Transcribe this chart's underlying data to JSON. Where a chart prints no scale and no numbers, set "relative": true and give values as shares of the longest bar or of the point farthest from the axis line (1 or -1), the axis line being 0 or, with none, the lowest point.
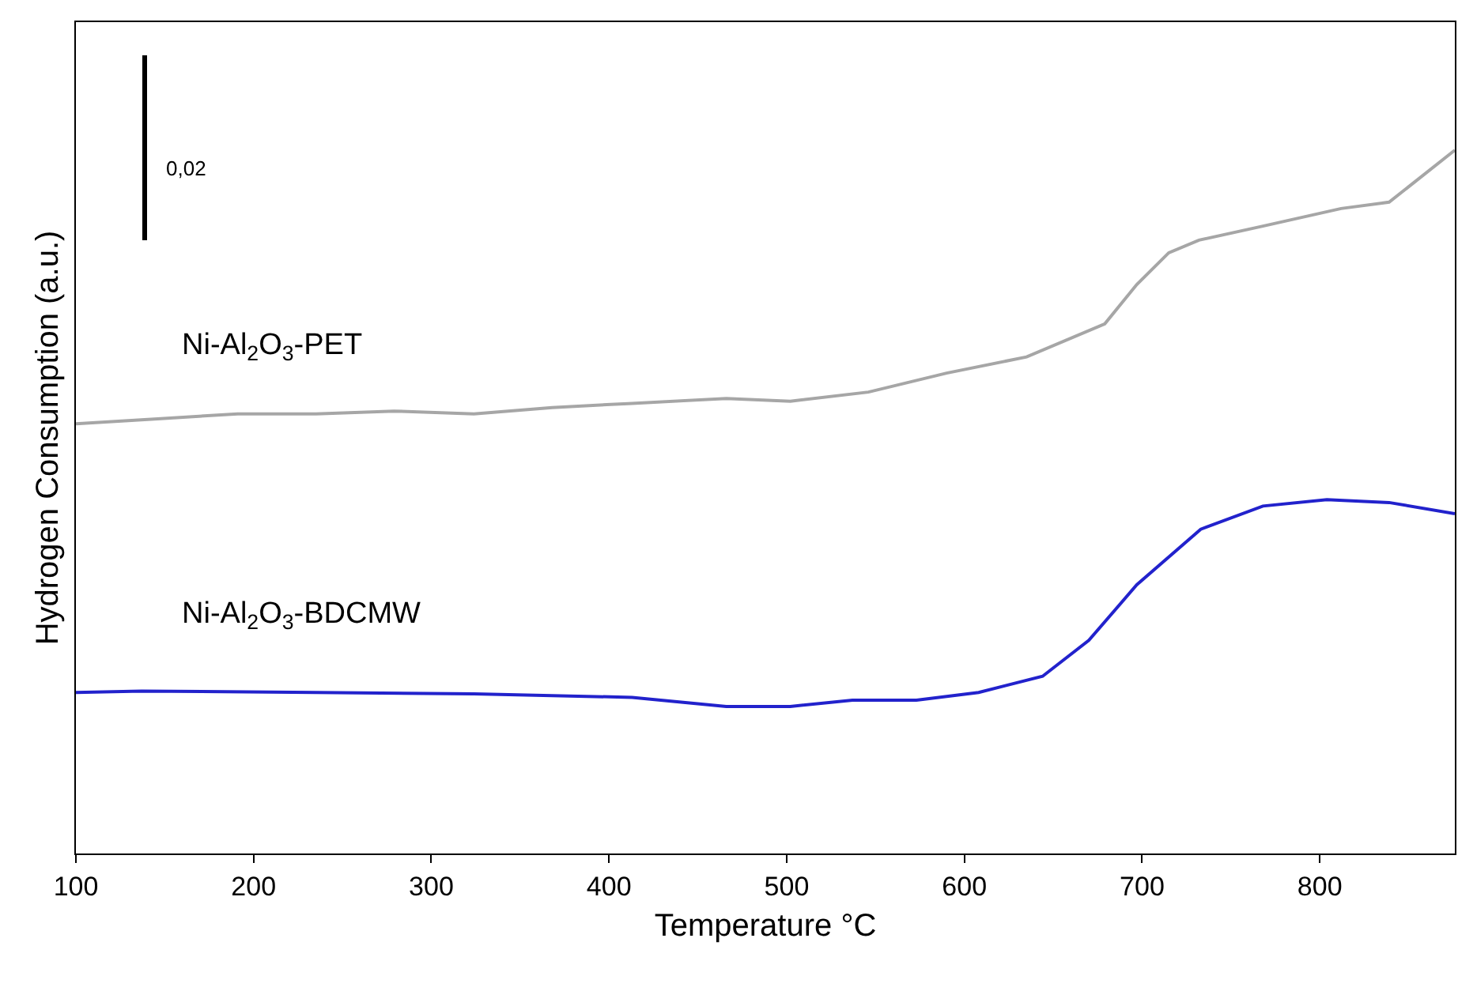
{
  "chart_data": {
    "type": "line",
    "relative": true,
    "xlabel": "Temperature °C",
    "ylabel": "Hydrogen Consumption (a.u.)",
    "xlim": [
      100,
      876
    ],
    "xticks": [
      100,
      200,
      300,
      400,
      500,
      600,
      700,
      800
    ],
    "grid": false,
    "legend": false,
    "marker": "none",
    "line_style": "solid",
    "annotations": [
      "0,02"
    ],
    "series": [
      {
        "name": "Ni-Al$_{2}$O$_{3}$-PET",
        "color": "#a6a6a6",
        "x": [
          100,
          146,
          191,
          235,
          279,
          324,
          368,
          413,
          466,
          502,
          546,
          590,
          635,
          679,
          697,
          715,
          732,
          768,
          812,
          839,
          876
        ],
        "values": [
          0.611,
          0.618,
          0.625,
          0.625,
          0.629,
          0.625,
          0.634,
          0.64,
          0.647,
          0.643,
          0.656,
          0.683,
          0.706,
          0.753,
          0.809,
          0.854,
          0.872,
          0.892,
          0.917,
          0.926,
          1
        ]
      },
      {
        "name": "Ni-Al$_{2}$O$_{3}$-BDCMW",
        "color": "#2222cc",
        "x": [
          100,
          137,
          235,
          324,
          413,
          466,
          502,
          537,
          573,
          608,
          644,
          670,
          697,
          733,
          768,
          804,
          839,
          876
        ],
        "values": [
          0.229,
          0.231,
          0.229,
          0.227,
          0.222,
          0.209,
          0.209,
          0.218,
          0.218,
          0.229,
          0.252,
          0.303,
          0.382,
          0.461,
          0.494,
          0.503,
          0.499,
          0.483
        ]
      }
    ]
  }
}
